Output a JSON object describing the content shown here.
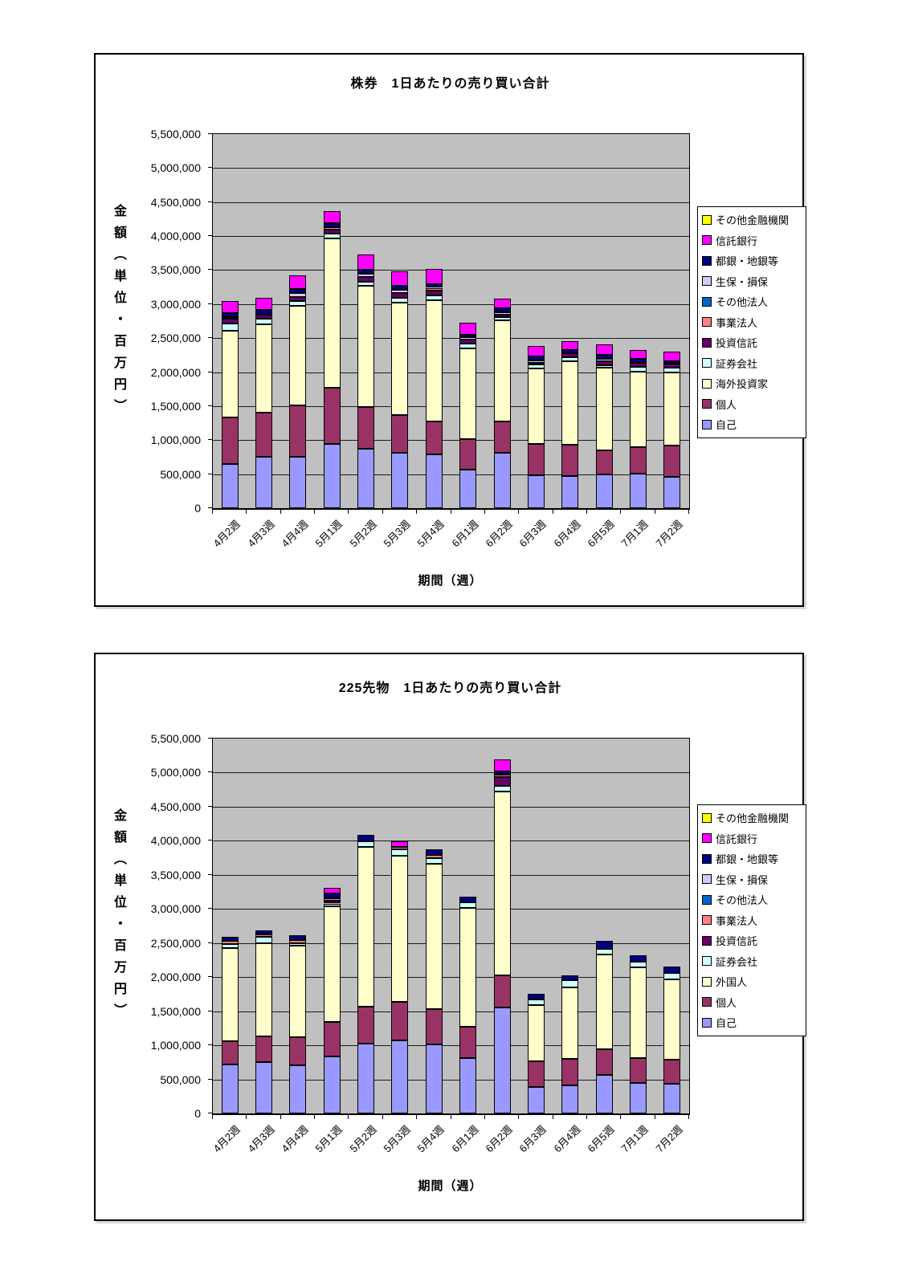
{
  "page_background": "#ffffff",
  "plot_background": "#c0c0c0",
  "chart_data": [
    {
      "type": "bar",
      "stacked": true,
      "title": "株券　1日あたりの売り買い合計",
      "xlabel": "期間（週）",
      "ylabel": "金額（単位・百万円）",
      "ylim": [
        0,
        5500000
      ],
      "y_step": 500000,
      "y_ticks": [
        "0",
        "500,000",
        "1,000,000",
        "1,500,000",
        "2,000,000",
        "2,500,000",
        "3,000,000",
        "3,500,000",
        "4,000,000",
        "4,500,000",
        "5,000,000",
        "5,500,000"
      ],
      "grid": true,
      "legend_position": "right",
      "categories": [
        "4月2週",
        "4月3週",
        "4月4週",
        "5月1週",
        "5月2週",
        "5月3週",
        "5月4週",
        "6月1週",
        "6月2週",
        "6月3週",
        "6月4週",
        "6月5週",
        "7月1週",
        "7月2週"
      ],
      "series": [
        {
          "name": "自己",
          "color": "#9999FF",
          "values": [
            650000,
            760000,
            760000,
            940000,
            870000,
            820000,
            790000,
            570000,
            810000,
            480000,
            470000,
            500000,
            510000,
            460000
          ]
        },
        {
          "name": "個人",
          "color": "#993366",
          "values": [
            680000,
            640000,
            750000,
            830000,
            620000,
            550000,
            480000,
            450000,
            460000,
            460000,
            460000,
            350000,
            390000,
            460000
          ]
        },
        {
          "name": "海外投資家",
          "color": "#FFFFCC",
          "values": [
            1280000,
            1300000,
            1470000,
            2200000,
            1780000,
            1650000,
            1790000,
            1330000,
            1490000,
            1110000,
            1230000,
            1220000,
            1110000,
            1080000
          ]
        },
        {
          "name": "証券会社",
          "color": "#CCFFFF",
          "values": [
            100000,
            80000,
            60000,
            70000,
            60000,
            70000,
            70000,
            70000,
            50000,
            60000,
            60000,
            30000,
            70000,
            70000
          ]
        },
        {
          "name": "投資信託",
          "color": "#660066",
          "values": [
            70000,
            70000,
            70000,
            50000,
            70000,
            70000,
            70000,
            60000,
            40000,
            30000,
            60000,
            60000,
            60000,
            50000
          ]
        },
        {
          "name": "事業法人",
          "color": "#FF8080",
          "values": [
            0,
            0,
            0,
            40000,
            0,
            0,
            40000,
            0,
            0,
            0,
            0,
            0,
            0,
            0
          ]
        },
        {
          "name": "その他法人",
          "color": "#0066CC",
          "values": [
            0,
            0,
            0,
            0,
            0,
            0,
            0,
            0,
            0,
            0,
            0,
            0,
            0,
            0
          ]
        },
        {
          "name": "生保・損保",
          "color": "#CCCCFF",
          "values": [
            30000,
            0,
            50000,
            0,
            50000,
            50000,
            0,
            30000,
            30000,
            30000,
            0,
            30000,
            0,
            0
          ]
        },
        {
          "name": "都銀・地銀等",
          "color": "#000080",
          "values": [
            60000,
            60000,
            60000,
            60000,
            60000,
            60000,
            50000,
            40000,
            60000,
            60000,
            40000,
            60000,
            50000,
            40000
          ]
        },
        {
          "name": "信託銀行",
          "color": "#FF00FF",
          "values": [
            180000,
            180000,
            200000,
            180000,
            220000,
            210000,
            230000,
            180000,
            140000,
            150000,
            130000,
            160000,
            140000,
            140000
          ]
        },
        {
          "name": "その他金融機関",
          "color": "#FFFF00",
          "values": [
            0,
            0,
            0,
            0,
            0,
            0,
            0,
            0,
            0,
            0,
            0,
            0,
            0,
            0
          ]
        }
      ]
    },
    {
      "type": "bar",
      "stacked": true,
      "title": "225先物　1日あたりの売り買い合計",
      "xlabel": "期間（週）",
      "ylabel": "金額（単位・百万円）",
      "ylim": [
        0,
        5500000
      ],
      "y_step": 500000,
      "y_ticks": [
        "0",
        "500,000",
        "1,000,000",
        "1,500,000",
        "2,000,000",
        "2,500,000",
        "3,000,000",
        "3,500,000",
        "4,000,000",
        "4,500,000",
        "5,000,000",
        "5,500,000"
      ],
      "grid": true,
      "legend_position": "right",
      "categories": [
        "4月2週",
        "4月3週",
        "4月4週",
        "5月1週",
        "5月2週",
        "5月3週",
        "5月4週",
        "6月1週",
        "6月2週",
        "6月3週",
        "6月4週",
        "6月5週",
        "7月1週",
        "7月2週"
      ],
      "series": [
        {
          "name": "自己",
          "color": "#9999FF",
          "values": [
            720000,
            750000,
            710000,
            840000,
            1020000,
            1070000,
            1010000,
            810000,
            1550000,
            390000,
            410000,
            570000,
            450000,
            440000
          ]
        },
        {
          "name": "個人",
          "color": "#993366",
          "values": [
            340000,
            380000,
            410000,
            500000,
            550000,
            570000,
            520000,
            460000,
            480000,
            380000,
            390000,
            370000,
            360000,
            350000
          ]
        },
        {
          "name": "外国人",
          "color": "#FFFFCC",
          "values": [
            1370000,
            1370000,
            1340000,
            1700000,
            2340000,
            2140000,
            2130000,
            1740000,
            2690000,
            820000,
            1050000,
            1390000,
            1330000,
            1180000
          ]
        },
        {
          "name": "証券会社",
          "color": "#CCFFFF",
          "values": [
            60000,
            90000,
            40000,
            40000,
            80000,
            90000,
            90000,
            90000,
            80000,
            80000,
            100000,
            90000,
            90000,
            90000
          ]
        },
        {
          "name": "投資信託",
          "color": "#660066",
          "values": [
            0,
            0,
            0,
            40000,
            0,
            0,
            0,
            0,
            130000,
            0,
            0,
            0,
            0,
            0
          ]
        },
        {
          "name": "事業法人",
          "color": "#FF8080",
          "values": [
            40000,
            40000,
            40000,
            40000,
            0,
            40000,
            40000,
            0,
            40000,
            0,
            0,
            0,
            0,
            0
          ]
        },
        {
          "name": "その他法人",
          "color": "#0066CC",
          "values": [
            0,
            0,
            0,
            0,
            0,
            0,
            0,
            0,
            0,
            0,
            0,
            0,
            0,
            0
          ]
        },
        {
          "name": "生保・損保",
          "color": "#CCCCFF",
          "values": [
            0,
            0,
            0,
            0,
            0,
            0,
            0,
            0,
            0,
            0,
            0,
            0,
            0,
            0
          ]
        },
        {
          "name": "都銀・地銀等",
          "color": "#000080",
          "values": [
            60000,
            60000,
            70000,
            70000,
            100000,
            0,
            80000,
            80000,
            50000,
            80000,
            80000,
            110000,
            90000,
            90000
          ]
        },
        {
          "name": "信託銀行",
          "color": "#FF00FF",
          "values": [
            0,
            0,
            0,
            80000,
            0,
            80000,
            0,
            0,
            170000,
            0,
            0,
            0,
            0,
            0
          ]
        },
        {
          "name": "その他金融機関",
          "color": "#FFFF00",
          "values": [
            0,
            0,
            0,
            0,
            0,
            0,
            0,
            0,
            0,
            0,
            0,
            0,
            0,
            0
          ]
        }
      ]
    }
  ]
}
